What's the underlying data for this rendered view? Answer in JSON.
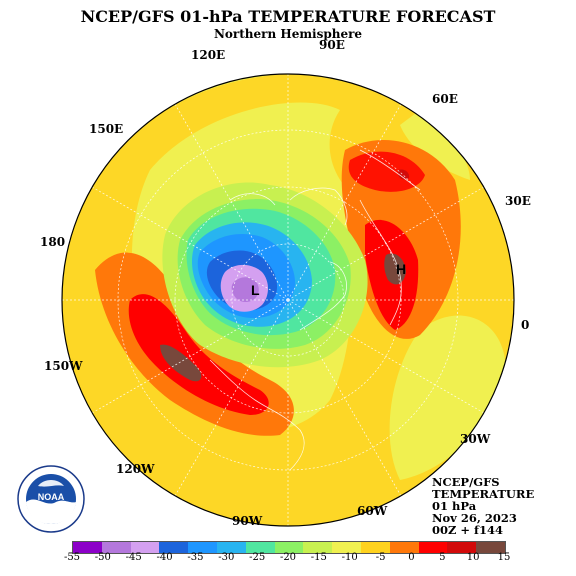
{
  "title": "NCEP/GFS 01-hPa TEMPERATURE FORECAST",
  "subtitle": "Northern Hemisphere",
  "longitude_labels": [
    {
      "id": "90e",
      "text": "90E"
    },
    {
      "id": "120e",
      "text": "120E"
    },
    {
      "id": "60e",
      "text": "60E"
    },
    {
      "id": "150e",
      "text": "150E"
    },
    {
      "id": "30e",
      "text": "30E"
    },
    {
      "id": "180",
      "text": "180"
    },
    {
      "id": "0",
      "text": "0"
    },
    {
      "id": "150w",
      "text": "150W"
    },
    {
      "id": "30w",
      "text": "30W"
    },
    {
      "id": "120w",
      "text": "120W"
    },
    {
      "id": "60w",
      "text": "60W"
    },
    {
      "id": "90w",
      "text": "90W"
    }
  ],
  "pressure_centers": [
    {
      "id": "low",
      "text": "L"
    },
    {
      "id": "high",
      "text": "H"
    }
  ],
  "info": {
    "line1": "NCEP/GFS",
    "line2": "TEMPERATURE",
    "line3": "01 hPa",
    "line4": "Nov 26, 2023",
    "line5": "00Z + f144"
  },
  "logo_text": "NOAA",
  "legend": {
    "ticks": [
      "-55",
      "-50",
      "-45",
      "-40",
      "-35",
      "-30",
      "-25",
      "-20",
      "-15",
      "-10",
      "-5",
      "0",
      "5",
      "10",
      "15"
    ],
    "colors": [
      "#8c00c8",
      "#b478dc",
      "#d4a0f0",
      "#1c64dc",
      "#1e96ff",
      "#28b4f0",
      "#50e6a0",
      "#8cf064",
      "#c8f050",
      "#f0f050",
      "#ffd21e",
      "#ff780a",
      "#ff0000",
      "#d20a0a",
      "#78483c"
    ]
  }
}
